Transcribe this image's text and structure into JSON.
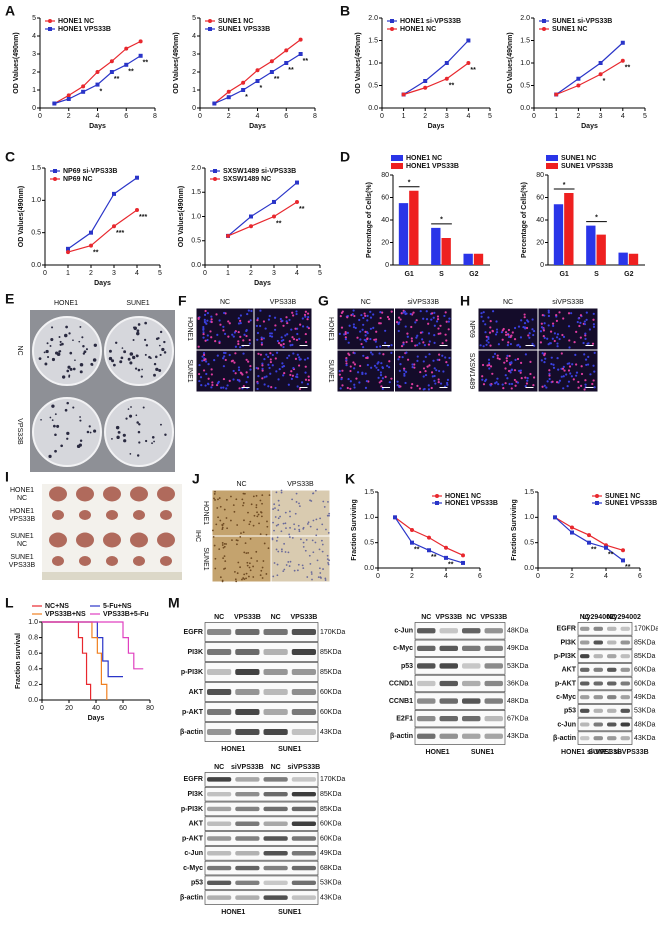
{
  "chart_data": [
    {
      "type": "line",
      "panel": "A",
      "xlabel": "Days",
      "ylabel": "OD Values(490nm)",
      "x": [
        1,
        2,
        3,
        4,
        5,
        6,
        7
      ],
      "xlim": [
        0,
        8
      ],
      "xticks": [
        0,
        2,
        4,
        6,
        8
      ],
      "ylim": [
        0,
        5
      ],
      "yticks": [
        0,
        1,
        2,
        3,
        4,
        5
      ],
      "legend": "top-left",
      "series": [
        {
          "name": "HONE1 NC",
          "color": "#e8282e",
          "marker": "circle",
          "values": [
            0.25,
            0.7,
            1.2,
            2.0,
            2.6,
            3.3,
            3.7
          ]
        },
        {
          "name": "HONE1 VPS33B",
          "color": "#2a35c8",
          "marker": "square",
          "values": [
            0.25,
            0.5,
            0.9,
            1.3,
            2.0,
            2.4,
            2.9
          ]
        }
      ],
      "annotations": [
        {
          "x": 4,
          "text": "*"
        },
        {
          "x": 5,
          "text": "**"
        },
        {
          "x": 6,
          "text": "**"
        },
        {
          "x": 7,
          "text": "**"
        }
      ]
    },
    {
      "type": "line",
      "xlabel": "Days",
      "ylabel": "OD Values(490nm)",
      "x": [
        1,
        2,
        3,
        4,
        5,
        6,
        7
      ],
      "xlim": [
        0,
        8
      ],
      "xticks": [
        0,
        2,
        4,
        6,
        8
      ],
      "ylim": [
        0,
        5
      ],
      "yticks": [
        0,
        1,
        2,
        3,
        4,
        5
      ],
      "legend": "top-left",
      "series": [
        {
          "name": "SUNE1 NC",
          "color": "#e8282e",
          "marker": "circle",
          "values": [
            0.25,
            0.9,
            1.4,
            2.1,
            2.6,
            3.2,
            3.8
          ]
        },
        {
          "name": "SUNE1 VPS33B",
          "color": "#2a35c8",
          "marker": "square",
          "values": [
            0.25,
            0.6,
            1.0,
            1.5,
            2.0,
            2.5,
            3.0
          ]
        }
      ],
      "annotations": [
        {
          "x": 3,
          "text": "*"
        },
        {
          "x": 4,
          "text": "*"
        },
        {
          "x": 5,
          "text": "**"
        },
        {
          "x": 6,
          "text": "**"
        },
        {
          "x": 7,
          "text": "**"
        }
      ]
    },
    {
      "type": "line",
      "panel": "B",
      "xlabel": "Days",
      "ylabel": "OD Values(490nm)",
      "x": [
        1,
        2,
        3,
        4
      ],
      "xlim": [
        0,
        5
      ],
      "xticks": [
        0,
        1,
        2,
        3,
        4,
        5
      ],
      "ylim": [
        0,
        2
      ],
      "yticks": [
        {
          "value": 0,
          "label": "0.0"
        },
        0.5,
        {
          "value": 1,
          "label": "1.0"
        },
        1.5,
        {
          "value": 2,
          "label": "2.0"
        }
      ],
      "legend": "top-left",
      "series": [
        {
          "name": "HONE1 si-VPS33B",
          "color": "#2a35c8",
          "marker": "square",
          "values": [
            0.3,
            0.6,
            1.0,
            1.5
          ]
        },
        {
          "name": "HONE1 NC",
          "color": "#e8282e",
          "marker": "circle",
          "values": [
            0.3,
            0.45,
            0.65,
            1.0
          ]
        }
      ],
      "annotations": [
        {
          "x": 3,
          "text": "**"
        },
        {
          "x": 4,
          "text": "**"
        }
      ]
    },
    {
      "type": "line",
      "xlabel": "Days",
      "ylabel": "OD Values(490nm)",
      "x": [
        1,
        2,
        3,
        4
      ],
      "xlim": [
        0,
        5
      ],
      "xticks": [
        0,
        1,
        2,
        3,
        4,
        5
      ],
      "ylim": [
        0,
        2
      ],
      "yticks": [
        {
          "value": 0,
          "label": "0.0"
        },
        0.5,
        {
          "value": 1,
          "label": "1.0"
        },
        1.5,
        {
          "value": 2,
          "label": "2.0"
        }
      ],
      "legend": "top-left",
      "series": [
        {
          "name": "SUNE1 si-VPS33B",
          "color": "#2a35c8",
          "marker": "square",
          "values": [
            0.3,
            0.65,
            1.0,
            1.45
          ]
        },
        {
          "name": "SUNE1 NC",
          "color": "#e8282e",
          "marker": "circle",
          "values": [
            0.3,
            0.5,
            0.75,
            1.05
          ]
        }
      ],
      "annotations": [
        {
          "x": 3,
          "text": "*"
        },
        {
          "x": 4,
          "text": "**"
        }
      ]
    },
    {
      "type": "line",
      "panel": "C",
      "xlabel": "Days",
      "ylabel": "OD Values(490nm)",
      "x": [
        1,
        2,
        3,
        4
      ],
      "xlim": [
        0,
        5
      ],
      "xticks": [
        0,
        1,
        2,
        3,
        4,
        5
      ],
      "ylim": [
        0,
        1.5
      ],
      "yticks": [
        {
          "value": 0,
          "label": "0.0"
        },
        0.5,
        {
          "value": 1,
          "label": "1.0"
        },
        1.5
      ],
      "legend": "top-left",
      "series": [
        {
          "name": "NP69 si-VPS33B",
          "color": "#2a35c8",
          "marker": "square",
          "values": [
            0.25,
            0.5,
            1.1,
            1.35
          ]
        },
        {
          "name": "NP69 NC",
          "color": "#e8282e",
          "marker": "circle",
          "values": [
            0.2,
            0.3,
            0.6,
            0.85
          ]
        }
      ],
      "annotations": [
        {
          "x": 2,
          "text": "**"
        },
        {
          "x": 3,
          "text": "***"
        },
        {
          "x": 4,
          "text": "***"
        }
      ]
    },
    {
      "type": "line",
      "xlabel": "Days",
      "ylabel": "OD Values(490nm)",
      "x": [
        1,
        2,
        3,
        4
      ],
      "xlim": [
        0,
        5
      ],
      "xticks": [
        0,
        1,
        2,
        3,
        4,
        5
      ],
      "ylim": [
        0,
        2
      ],
      "yticks": [
        {
          "value": 0,
          "label": "0.0"
        },
        0.5,
        {
          "value": 1,
          "label": "1.0"
        },
        1.5,
        {
          "value": 2,
          "label": "2.0"
        }
      ],
      "legend": "top-left",
      "series": [
        {
          "name": "SXSW1489 si-VPS33B",
          "color": "#2a35c8",
          "marker": "square",
          "values": [
            0.6,
            1.0,
            1.3,
            1.7
          ]
        },
        {
          "name": "SXSW1489 NC",
          "color": "#e8282e",
          "marker": "circle",
          "values": [
            0.6,
            0.8,
            1.0,
            1.3
          ]
        }
      ],
      "annotations": [
        {
          "x": 3,
          "text": "**"
        },
        {
          "x": 4,
          "text": "**"
        }
      ]
    },
    {
      "type": "bar",
      "panel": "D",
      "ylabel": "Percentage of Cells(%)",
      "categories": [
        "G1",
        "S",
        "G2"
      ],
      "ylim": [
        0,
        80
      ],
      "yticks": [
        0,
        20,
        40,
        60,
        80
      ],
      "legend": "above",
      "series": [
        {
          "name": "HONE1 NC",
          "color": "#2a35e8",
          "values": [
            55,
            33,
            10
          ]
        },
        {
          "name": "HONE1 VPS33B",
          "color": "#ee2020",
          "values": [
            66,
            24,
            10
          ]
        }
      ],
      "annotations": [
        {
          "x": "G1",
          "text": "*"
        },
        {
          "x": "S",
          "text": "*"
        }
      ]
    },
    {
      "type": "bar",
      "ylabel": "Percentage of Cells(%)",
      "categories": [
        "G1",
        "S",
        "G2"
      ],
      "ylim": [
        0,
        80
      ],
      "yticks": [
        0,
        20,
        40,
        60,
        80
      ],
      "legend": "above",
      "series": [
        {
          "name": "SUNE1 NC",
          "color": "#2a35e8",
          "values": [
            54,
            35,
            11
          ]
        },
        {
          "name": "SUNE1 VPS33B",
          "color": "#ee2020",
          "values": [
            64,
            27,
            10
          ]
        }
      ],
      "annotations": [
        {
          "x": "G1",
          "text": "*"
        },
        {
          "x": "S",
          "text": "*"
        }
      ]
    },
    {
      "type": "line",
      "panel": "K",
      "ylabel": "Fraction Surviving",
      "x": [
        1,
        2,
        3,
        4,
        5
      ],
      "xlim": [
        0,
        6
      ],
      "xticks": [
        0,
        2,
        4,
        6
      ],
      "ylim": [
        0,
        1.5
      ],
      "yticks": [
        {
          "value": 0,
          "label": "0.0"
        },
        0.5,
        {
          "value": 1,
          "label": "1.0"
        },
        1.5
      ],
      "legend": "top-right",
      "series": [
        {
          "name": "HONE1 NC",
          "color": "#e8282e",
          "marker": "circle",
          "values": [
            1.0,
            0.75,
            0.6,
            0.4,
            0.25
          ]
        },
        {
          "name": "HONE1 VPS33B",
          "color": "#2a35c8",
          "marker": "square",
          "values": [
            1.0,
            0.5,
            0.35,
            0.2,
            0.1
          ]
        }
      ],
      "annotations": [
        {
          "x": 2,
          "text": "**"
        },
        {
          "x": 3,
          "text": "**"
        },
        {
          "x": 4,
          "text": "**"
        }
      ]
    },
    {
      "type": "line",
      "ylabel": "Fraction Surviving",
      "x": [
        1,
        2,
        3,
        4,
        5
      ],
      "xlim": [
        0,
        6
      ],
      "xticks": [
        0,
        2,
        4,
        6
      ],
      "ylim": [
        0,
        1.5
      ],
      "yticks": [
        {
          "value": 0,
          "label": "0.0"
        },
        0.5,
        {
          "value": 1,
          "label": "1.0"
        },
        1.5
      ],
      "legend": "top-right",
      "series": [
        {
          "name": "SUNE1 NC",
          "color": "#e8282e",
          "marker": "circle",
          "values": [
            1.0,
            0.8,
            0.65,
            0.45,
            0.35
          ]
        },
        {
          "name": "SUNE1 VPS33B",
          "color": "#2a35c8",
          "marker": "square",
          "values": [
            1.0,
            0.7,
            0.5,
            0.4,
            0.15
          ]
        }
      ],
      "annotations": [
        {
          "x": 3,
          "text": "**"
        },
        {
          "x": 4,
          "text": "**"
        },
        {
          "x": 5,
          "text": "**"
        }
      ]
    },
    {
      "type": "step",
      "panel": "L",
      "xlabel": "Days",
      "ylabel": "Fraction survival",
      "xlim": [
        0,
        80
      ],
      "xticks": [
        0,
        20,
        40,
        60,
        80
      ],
      "ylim": [
        0,
        1
      ],
      "yticks": [
        {
          "value": 0,
          "label": "0.0"
        },
        0.2,
        0.4,
        0.6,
        0.8,
        {
          "value": 1,
          "label": "1.0"
        }
      ],
      "legend": "above",
      "series": [
        {
          "name": "NC+NS",
          "color": "#e8282e",
          "x": [
            0,
            27,
            27,
            30,
            30,
            33,
            33,
            36,
            36
          ],
          "values": [
            1,
            1,
            0.8,
            0.8,
            0.6,
            0.6,
            0.2,
            0.2,
            0
          ]
        },
        {
          "name": "5-Fu+NS",
          "color": "#2a35c8",
          "x": [
            0,
            41,
            41,
            45,
            45,
            49,
            49,
            60
          ],
          "values": [
            1,
            1,
            0.8,
            0.8,
            0.5,
            0.5,
            0.3,
            0.3
          ]
        },
        {
          "name": "VPS33B+NS",
          "color": "#f08020",
          "x": [
            0,
            37,
            37,
            41,
            41,
            44,
            44,
            48,
            48
          ],
          "values": [
            1,
            1,
            0.8,
            0.8,
            0.6,
            0.6,
            0.2,
            0.2,
            0
          ]
        },
        {
          "name": "VPS33B+5-Fu",
          "color": "#e040c0",
          "x": [
            0,
            60,
            60,
            64,
            64,
            68,
            68,
            75
          ],
          "values": [
            1,
            1,
            0.8,
            0.8,
            0.6,
            0.6,
            0.4,
            0.4
          ]
        }
      ]
    }
  ],
  "figure": {
    "panel_letters": [
      "E",
      "F",
      "G",
      "H",
      "I",
      "J",
      "M"
    ],
    "E": {
      "columns": [
        "HONE1",
        "SUNE1"
      ],
      "rows": [
        "NC",
        "VPS33B"
      ]
    },
    "F": {
      "columns": [
        "NC",
        "VPS33B"
      ],
      "rows": [
        "HONE1",
        "SUNE1"
      ]
    },
    "G": {
      "columns": [
        "NC",
        "siVPS33B"
      ],
      "rows": [
        "HONE1",
        "SUNE1"
      ]
    },
    "H": {
      "columns": [
        "NC",
        "siVPS33B"
      ],
      "rows": [
        "NP69",
        "SXSW1489"
      ]
    },
    "I": {
      "rows": [
        [
          "HONE1",
          "NC"
        ],
        [
          "HONE1",
          "VPS33B"
        ],
        [
          "SUNE1",
          "NC"
        ],
        [
          "SUNE1",
          "VPS33B"
        ]
      ]
    },
    "J": {
      "columns": [
        "NC",
        "VPS33B"
      ],
      "rows": [
        "HONE1",
        "SUNE1"
      ],
      "method": "IHC"
    },
    "M": [
      {
        "columns": [
          "NC",
          "VPS33B",
          "NC",
          "VPS33B"
        ],
        "groups": [
          "HONE1",
          "SUNE1"
        ],
        "rows": [
          "EGFR",
          "PI3K",
          "p-PI3K",
          "AKT",
          "p-AKT",
          "β-actin"
        ],
        "kda": [
          "170KDa",
          "85KDa",
          "85KDa",
          "60KDa",
          "60KDa",
          "43KDa"
        ]
      },
      {
        "columns": [
          "NC",
          "siVPS33B",
          "NC",
          "siVPS33B"
        ],
        "groups": [
          "HONE1",
          "SUNE1"
        ],
        "rows": [
          "EGFR",
          "PI3K",
          "p-PI3K",
          "AKT",
          "p-AKT",
          "c-Jun",
          "c-Myc",
          "p53",
          "β-actin"
        ],
        "kda": [
          "170KDa",
          "85KDa",
          "85KDa",
          "60KDa",
          "60KDa",
          "49KDa",
          "68KDa",
          "53KDa",
          "43KDa"
        ]
      },
      {
        "columns": [
          "NC",
          "VPS33B",
          "NC",
          "VPS33B"
        ],
        "groups": [
          "HONE1",
          "SUNE1"
        ],
        "rows": [
          "c-Jun",
          "c-Myc",
          "p53",
          "CCND1",
          "CCNB1",
          "E2F1",
          "β-actin"
        ],
        "kda": [
          "48KDa",
          "49KDa",
          "53KDa",
          "36KDa",
          "48KDa",
          "67KDa",
          "43KDa"
        ]
      },
      {
        "columns": [
          "NC",
          "Ly294002",
          "NC",
          "Ly294002"
        ],
        "groups": [
          "HONE1 si-VPS33B",
          "SUNE1 si-VPS33B"
        ],
        "rows": [
          "EGFR",
          "PI3K",
          "p-PI3K",
          "AKT",
          "p-AKT",
          "c-Myc",
          "p53",
          "c-Jun",
          "β-actin"
        ],
        "kda": [
          "170KDa",
          "85KDa",
          "85KDa",
          "60KDa",
          "60KDa",
          "49KDa",
          "53KDa",
          "48KDa",
          "43KDa"
        ]
      }
    ]
  }
}
